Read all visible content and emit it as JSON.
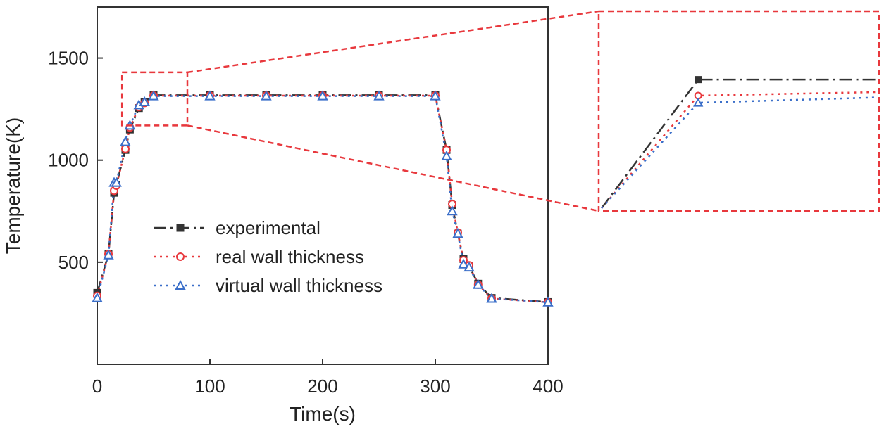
{
  "chart_data": {
    "type": "line",
    "title": "",
    "xlabel": "Time(s)",
    "ylabel": "Temperature(K)",
    "xlim": [
      0,
      400
    ],
    "ylim": [
      0,
      1750
    ],
    "xticks": [
      0,
      100,
      200,
      300,
      400
    ],
    "yticks": [
      500,
      1000,
      1500
    ],
    "legend_position": "center-left",
    "series": [
      {
        "name": "experimental",
        "color": "#333333",
        "marker": "square",
        "line_style": "dash-dot",
        "x": [
          0,
          10,
          15,
          17,
          25,
          29,
          37,
          42,
          50,
          100,
          150,
          200,
          250,
          300,
          310,
          315,
          320,
          325,
          330,
          338,
          350,
          400
        ],
        "y": [
          350,
          540,
          840,
          880,
          1050,
          1150,
          1255,
          1285,
          1318,
          1318,
          1318,
          1318,
          1318,
          1318,
          1050,
          780,
          640,
          515,
          480,
          395,
          325,
          305
        ]
      },
      {
        "name": "real wall thickness",
        "color": "#e8383d",
        "marker": "circle",
        "line_style": "dotted",
        "x": [
          0,
          10,
          15,
          17,
          25,
          29,
          37,
          42,
          50,
          100,
          150,
          200,
          250,
          300,
          310,
          315,
          320,
          325,
          330,
          338,
          350,
          400
        ],
        "y": [
          335,
          540,
          850,
          875,
          1055,
          1160,
          1260,
          1280,
          1316,
          1316,
          1316,
          1316,
          1316,
          1316,
          1050,
          785,
          645,
          510,
          485,
          390,
          322,
          304
        ]
      },
      {
        "name": "virtual wall thickness",
        "color": "#3b6fc9",
        "marker": "triangle",
        "line_style": "dotted",
        "x": [
          0,
          10,
          15,
          17,
          25,
          29,
          37,
          42,
          50,
          100,
          150,
          200,
          250,
          300,
          310,
          315,
          320,
          325,
          330,
          338,
          350,
          400
        ],
        "y": [
          325,
          535,
          890,
          890,
          1090,
          1170,
          1270,
          1285,
          1314,
          1314,
          1314,
          1314,
          1314,
          1314,
          1020,
          750,
          640,
          490,
          475,
          390,
          322,
          304
        ]
      }
    ],
    "inset": {
      "zoom_xlim": [
        22,
        80
      ],
      "zoom_ylim": [
        1170,
        1430
      ],
      "description_source_box": "zoom of plateau onset",
      "series": [
        {
          "name": "experimental",
          "x": [
            0,
            0.35,
            1.0
          ],
          "y": [
            0.0,
            0.72,
            0.72
          ]
        },
        {
          "name": "real wall thickness",
          "x": [
            0,
            0.35,
            1.0
          ],
          "y": [
            0.0,
            0.63,
            0.65
          ]
        },
        {
          "name": "virtual wall thickness",
          "x": [
            0,
            0.35,
            1.0
          ],
          "y": [
            0.0,
            0.59,
            0.62
          ]
        }
      ]
    }
  }
}
